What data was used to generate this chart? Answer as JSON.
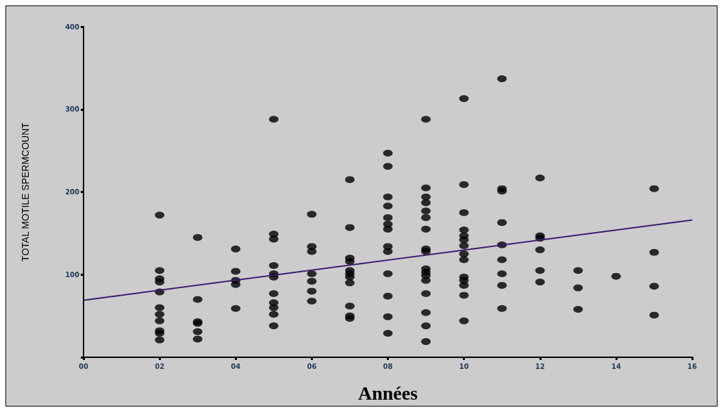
{
  "chart_data": {
    "type": "scatter",
    "xlabel": "Années",
    "ylabel": "TOTAL MOTILE SPERMCOUNT",
    "xlim": [
      0,
      16
    ],
    "xticks": [
      {
        "value": 0,
        "label": "00"
      },
      {
        "value": 2,
        "label": "02"
      },
      {
        "value": 4,
        "label": "04"
      },
      {
        "value": 6,
        "label": "06"
      },
      {
        "value": 8,
        "label": "08"
      },
      {
        "value": 10,
        "label": "10"
      },
      {
        "value": 12,
        "label": "12"
      },
      {
        "value": 14,
        "label": "14"
      },
      {
        "value": 16,
        "label": "16"
      }
    ],
    "ylim": [
      0,
      400
    ],
    "yticks": [
      {
        "value": 0,
        "label": null
      },
      100,
      200,
      300,
      400
    ],
    "grid": false,
    "marker": "circle",
    "series": [
      {
        "color": "#000000",
        "x": [
          2,
          2,
          2,
          2,
          2,
          2,
          2,
          2,
          2,
          2,
          2,
          3,
          3,
          3,
          3,
          3,
          3,
          4,
          4,
          4,
          4,
          4,
          5,
          5,
          5,
          5,
          5,
          5,
          5,
          5,
          5,
          5,
          5,
          6,
          6,
          6,
          6,
          6,
          6,
          6,
          7,
          7,
          7,
          7,
          7,
          7,
          7,
          7,
          7,
          7,
          7,
          8,
          8,
          8,
          8,
          8,
          8,
          8,
          8,
          8,
          8,
          8,
          8,
          8,
          9,
          9,
          9,
          9,
          9,
          9,
          9,
          9,
          9,
          9,
          9,
          9,
          9,
          9,
          9,
          9,
          9,
          10,
          10,
          10,
          10,
          10,
          10,
          10,
          10,
          10,
          10,
          10,
          10,
          10,
          10,
          11,
          11,
          11,
          11,
          11,
          11,
          11,
          11,
          11,
          12,
          12,
          12,
          12,
          12,
          12,
          13,
          13,
          13,
          14,
          15,
          15,
          15,
          15
        ],
        "values": [
          172,
          105,
          95,
          91,
          79,
          60,
          52,
          44,
          32,
          29,
          21,
          145,
          70,
          43,
          41,
          31,
          22,
          131,
          104,
          93,
          88,
          59,
          288,
          149,
          143,
          111,
          101,
          97,
          77,
          66,
          60,
          52,
          38,
          173,
          134,
          128,
          101,
          92,
          80,
          68,
          215,
          157,
          120,
          116,
          105,
          101,
          97,
          90,
          62,
          50,
          47,
          247,
          231,
          194,
          183,
          169,
          161,
          155,
          134,
          128,
          101,
          74,
          49,
          29,
          288,
          205,
          194,
          187,
          177,
          169,
          155,
          131,
          128,
          107,
          103,
          99,
          93,
          77,
          54,
          38,
          19,
          313,
          209,
          175,
          154,
          147,
          142,
          135,
          125,
          118,
          97,
          93,
          87,
          75,
          44,
          337,
          204,
          201,
          163,
          136,
          118,
          101,
          87,
          59,
          217,
          147,
          144,
          130,
          105,
          91,
          105,
          84,
          58,
          98,
          204,
          127,
          86,
          51
        ]
      },
      {
        "type": "line",
        "color": "#3d1a6e",
        "x": [
          0,
          16
        ],
        "values": [
          69,
          166
        ],
        "marker": "none"
      }
    ]
  }
}
